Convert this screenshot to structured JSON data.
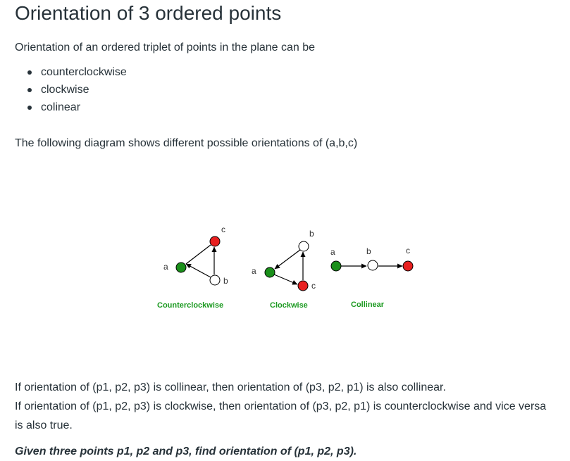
{
  "title": "Orientation of 3 ordered points",
  "intro": "Orientation of an ordered triplet of points in the plane can be",
  "orientations": [
    "counterclockwise",
    "clockwise",
    "colinear"
  ],
  "diagram_intro": "The following diagram shows different possible orientations of (a,b,c)",
  "diagram": {
    "colors": {
      "green": "#1a8f1a",
      "red": "#e82020",
      "white": "#ffffff",
      "caption": "#1c9a21"
    },
    "panels": [
      {
        "caption": "Counterclockwise",
        "points": {
          "a": "a",
          "b": "b",
          "c": "c"
        }
      },
      {
        "caption": "Clockwise",
        "points": {
          "a": "a",
          "b": "b",
          "c": "c"
        }
      },
      {
        "caption": "Collinear",
        "points": {
          "a": "a",
          "b": "b",
          "c": "c"
        }
      }
    ]
  },
  "note_line1": "If orientation of (p1, p2, p3) is collinear, then orientation of (p3, p2, p1) is also collinear.",
  "note_line2": "If orientation of (p1, p2, p3) is clockwise, then orientation of (p3, p2, p1) is counterclockwise and vice versa",
  "note_line3": "is also true.",
  "task": "Given three points p1, p2 and p3, find orientation of (p1, p2, p3)."
}
